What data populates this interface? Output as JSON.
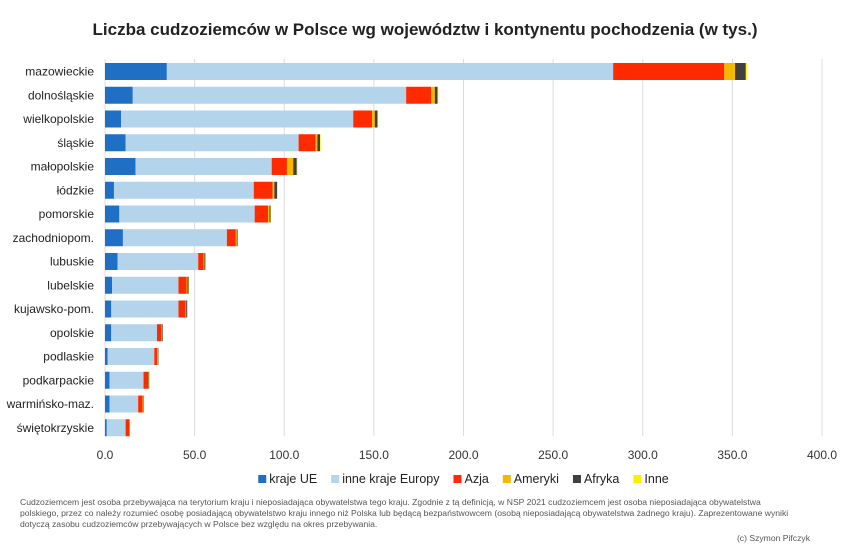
{
  "chart_data": {
    "type": "bar",
    "orientation": "horizontal",
    "stacked": true,
    "title": "Liczba cudzoziemców w Polsce wg województw i kontynentu pochodzenia (w tys.)",
    "xlabel": "",
    "ylabel": "",
    "xlim": [
      0,
      400
    ],
    "x_ticks": [
      "0.0",
      "50.0",
      "100.0",
      "150.0",
      "200.0",
      "250.0",
      "300.0",
      "350.0",
      "400.0"
    ],
    "grid": "vertical",
    "legend_position": "bottom",
    "categories": [
      "mazowieckie",
      "dolnośląskie",
      "wielkopolskie",
      "śląskie",
      "małopolskie",
      "łódzkie",
      "pomorskie",
      "zachodniopom.",
      "lubuskie",
      "lubelskie",
      "kujawsko-pom.",
      "opolskie",
      "podlaskie",
      "podkarpackie",
      "warmińsko-maz.",
      "świętokrzyskie"
    ],
    "series": [
      {
        "name": "kraje UE",
        "color": "#1f6fc5",
        "values": [
          34.5,
          15.5,
          9.0,
          11.5,
          17.0,
          5.0,
          8.0,
          10.0,
          7.0,
          4.0,
          3.5,
          3.5,
          1.5,
          2.5,
          2.5,
          1.0
        ]
      },
      {
        "name": "inne kraje Europy",
        "color": "#b3d4ea",
        "values": [
          249.0,
          152.5,
          129.5,
          96.5,
          76.0,
          78.0,
          75.5,
          58.0,
          45.0,
          37.0,
          37.5,
          25.5,
          26.0,
          19.0,
          16.0,
          10.5
        ]
      },
      {
        "name": "Azja",
        "color": "#ff2a00",
        "values": [
          62.0,
          14.0,
          10.5,
          9.5,
          8.5,
          10.5,
          7.5,
          5.0,
          3.0,
          4.5,
          4.0,
          2.5,
          1.5,
          2.5,
          2.5,
          2.0
        ]
      },
      {
        "name": "Ameryki",
        "color": "#f5b800",
        "values": [
          6.0,
          2.0,
          1.5,
          1.0,
          3.5,
          1.0,
          0.8,
          0.5,
          0.5,
          0.5,
          0.3,
          0.3,
          0.5,
          0.3,
          0.3,
          0.2
        ]
      },
      {
        "name": "Afryka",
        "color": "#404040",
        "values": [
          6.0,
          1.5,
          1.5,
          1.5,
          2.0,
          1.5,
          0.6,
          0.5,
          0.5,
          0.7,
          0.6,
          0.4,
          0.3,
          0.4,
          0.3,
          0.2
        ]
      },
      {
        "name": "Inne",
        "color": "#ffee00",
        "values": [
          0.6,
          0.4,
          0.4,
          0.3,
          0.4,
          0.3,
          0.2,
          0.2,
          0.2,
          0.2,
          0.2,
          0.1,
          0.1,
          0.1,
          0.1,
          0.1
        ]
      }
    ]
  },
  "footnote": "Cudzoziemcem jest osoba przebywająca na terytorium kraju i nieposiadająca obywatelstwa tego kraju. Zgodnie z tą definicją, w NSP 2021 cudzoziemcem jest osoba nieposiadająca obywatelstwa polskiego, przez co należy rozumieć osobę posiadającą obywatelstwo kraju innego niż Polska lub będącą bezpaństwowcem (osobą nieposiadającą obywatelstwa żadnego kraju). Zaprezentowane wyniki dotyczą zasobu cudzoziemców przebywających w Polsce bez względu na okres przebywania.",
  "credit": "(c) Szymon Pifczyk"
}
